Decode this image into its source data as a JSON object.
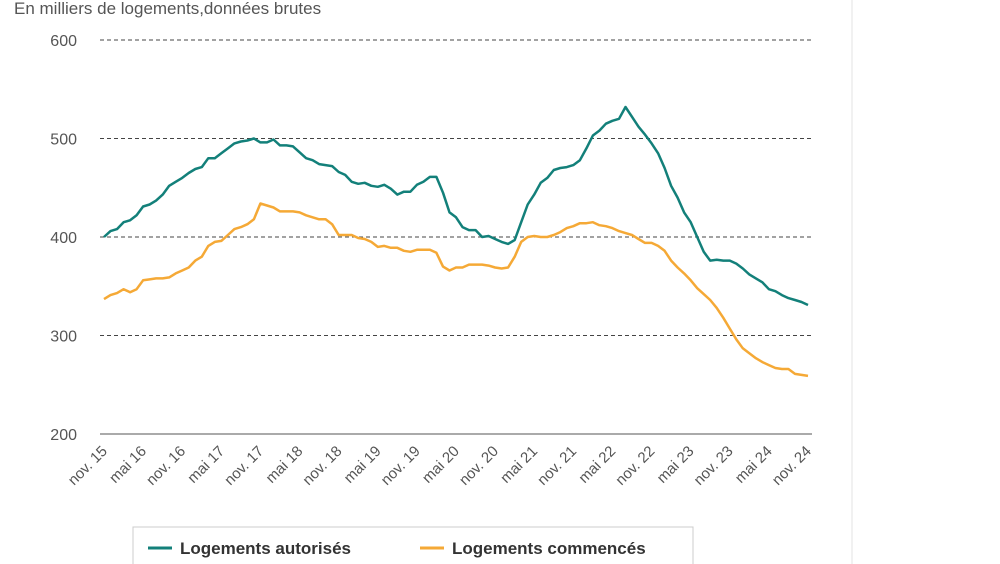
{
  "chart_data": {
    "type": "line",
    "title": "En milliers de logements,données brutes",
    "categories": [
      "nov. 15",
      null,
      null,
      null,
      null,
      null,
      "mai 16",
      null,
      null,
      null,
      null,
      null,
      "nov. 16",
      null,
      null,
      null,
      null,
      null,
      "mai 17",
      null,
      null,
      null,
      null,
      null,
      "nov. 17",
      null,
      null,
      null,
      null,
      null,
      "mai 18",
      null,
      null,
      null,
      null,
      null,
      "nov. 18",
      null,
      null,
      null,
      null,
      null,
      "mai 19",
      null,
      null,
      null,
      null,
      null,
      "nov. 19",
      null,
      null,
      null,
      null,
      null,
      "mai 20",
      null,
      null,
      null,
      null,
      null,
      "nov. 20",
      null,
      null,
      null,
      null,
      null,
      "mai 21",
      null,
      null,
      null,
      null,
      null,
      "nov. 21",
      null,
      null,
      null,
      null,
      null,
      "mai 22",
      null,
      null,
      null,
      null,
      null,
      "nov. 22",
      null,
      null,
      null,
      null,
      null,
      "mai 23",
      null,
      null,
      null,
      null,
      null,
      "nov. 23",
      null,
      null,
      null,
      null,
      null,
      "mai 24",
      null,
      null,
      null,
      null,
      null,
      "nov. 24"
    ],
    "series": [
      {
        "name": "Logements autorisés",
        "color": "#13807a",
        "values": [
          400,
          406,
          408,
          415,
          417,
          422,
          431,
          433,
          437,
          443,
          452,
          456,
          460,
          465,
          469,
          471,
          480,
          480,
          485,
          490,
          495,
          497,
          498,
          500,
          496,
          496,
          499,
          493,
          493,
          492,
          486,
          480,
          478,
          474,
          473,
          472,
          466,
          463,
          456,
          454,
          455,
          452,
          451,
          453,
          449,
          443,
          446,
          446,
          453,
          456,
          461,
          461,
          445,
          425,
          420,
          410,
          407,
          407,
          400,
          401,
          398,
          395,
          393,
          397,
          415,
          433,
          443,
          455,
          460,
          468,
          470,
          471,
          473,
          478,
          490,
          503,
          508,
          515,
          518,
          520,
          532,
          522,
          512,
          504,
          495,
          485,
          470,
          452,
          440,
          425,
          415,
          400,
          385,
          376,
          377,
          376,
          376,
          373,
          368,
          362,
          358,
          354,
          347,
          345,
          341,
          338,
          336,
          334,
          331
        ]
      },
      {
        "name": "Logements commencés",
        "color": "#f5a936",
        "values": [
          337,
          341,
          343,
          347,
          344,
          347,
          356,
          357,
          358,
          358,
          359,
          363,
          366,
          369,
          376,
          380,
          391,
          395,
          396,
          402,
          408,
          410,
          413,
          418,
          434,
          432,
          430,
          426,
          426,
          426,
          425,
          422,
          420,
          418,
          418,
          413,
          402,
          402,
          402,
          399,
          398,
          395,
          390,
          391,
          389,
          389,
          386,
          385,
          387,
          387,
          387,
          384,
          370,
          366,
          369,
          369,
          372,
          372,
          372,
          371,
          369,
          368,
          369,
          380,
          395,
          400,
          401,
          400,
          400,
          402,
          405,
          409,
          411,
          414,
          414,
          415,
          412,
          411,
          409,
          406,
          404,
          402,
          398,
          394,
          394,
          391,
          386,
          376,
          369,
          363,
          356,
          348,
          342,
          336,
          328,
          318,
          307,
          296,
          287,
          282,
          277,
          273,
          270,
          267,
          266,
          266,
          261,
          260,
          259
        ]
      }
    ],
    "ylim": [
      200,
      600
    ],
    "yticks": [
      200,
      300,
      400,
      500,
      600
    ],
    "grid": true
  }
}
